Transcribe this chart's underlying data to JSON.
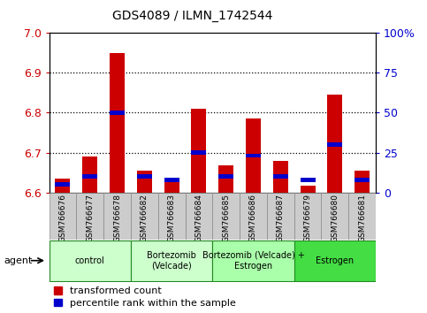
{
  "title": "GDS4089 / ILMN_1742544",
  "samples": [
    "GSM766676",
    "GSM766677",
    "GSM766678",
    "GSM766682",
    "GSM766683",
    "GSM766684",
    "GSM766685",
    "GSM766686",
    "GSM766687",
    "GSM766679",
    "GSM766680",
    "GSM766681"
  ],
  "transformed_count": [
    6.635,
    6.69,
    6.95,
    6.655,
    6.625,
    6.81,
    6.668,
    6.785,
    6.68,
    6.617,
    6.845,
    6.655
  ],
  "percentile_rank": [
    5,
    10,
    50,
    10,
    8,
    25,
    10,
    23,
    10,
    8,
    30,
    8
  ],
  "ylim_left": [
    6.6,
    7.0
  ],
  "ylim_right": [
    0,
    100
  ],
  "yticks_left": [
    6.6,
    6.7,
    6.8,
    6.9,
    7.0
  ],
  "yticks_right": [
    0,
    25,
    50,
    75,
    100
  ],
  "ytick_labels_right": [
    "0",
    "25",
    "50",
    "75",
    "100%"
  ],
  "groups": [
    {
      "label": "control",
      "indices": [
        0,
        1,
        2
      ],
      "color": "#ccffcc"
    },
    {
      "label": "Bortezomib\n(Velcade)",
      "indices": [
        3,
        4,
        5
      ],
      "color": "#ccffcc"
    },
    {
      "label": "Bortezomib (Velcade) +\nEstrogen",
      "indices": [
        6,
        7,
        8
      ],
      "color": "#aaffaa"
    },
    {
      "label": "Estrogen",
      "indices": [
        9,
        10,
        11
      ],
      "color": "#44dd44"
    }
  ],
  "bar_color_red": "#cc0000",
  "bar_color_blue": "#0000cc",
  "bar_width": 0.55,
  "baseline": 6.6,
  "legend_labels": [
    "transformed count",
    "percentile rank within the sample"
  ],
  "agent_label": "agent",
  "tick_color_left": "#cc0000",
  "tick_color_right": "#0000cc",
  "sample_bg_color": "#cccccc",
  "plot_bg": "#ffffff",
  "blue_bar_thickness": 0.01
}
